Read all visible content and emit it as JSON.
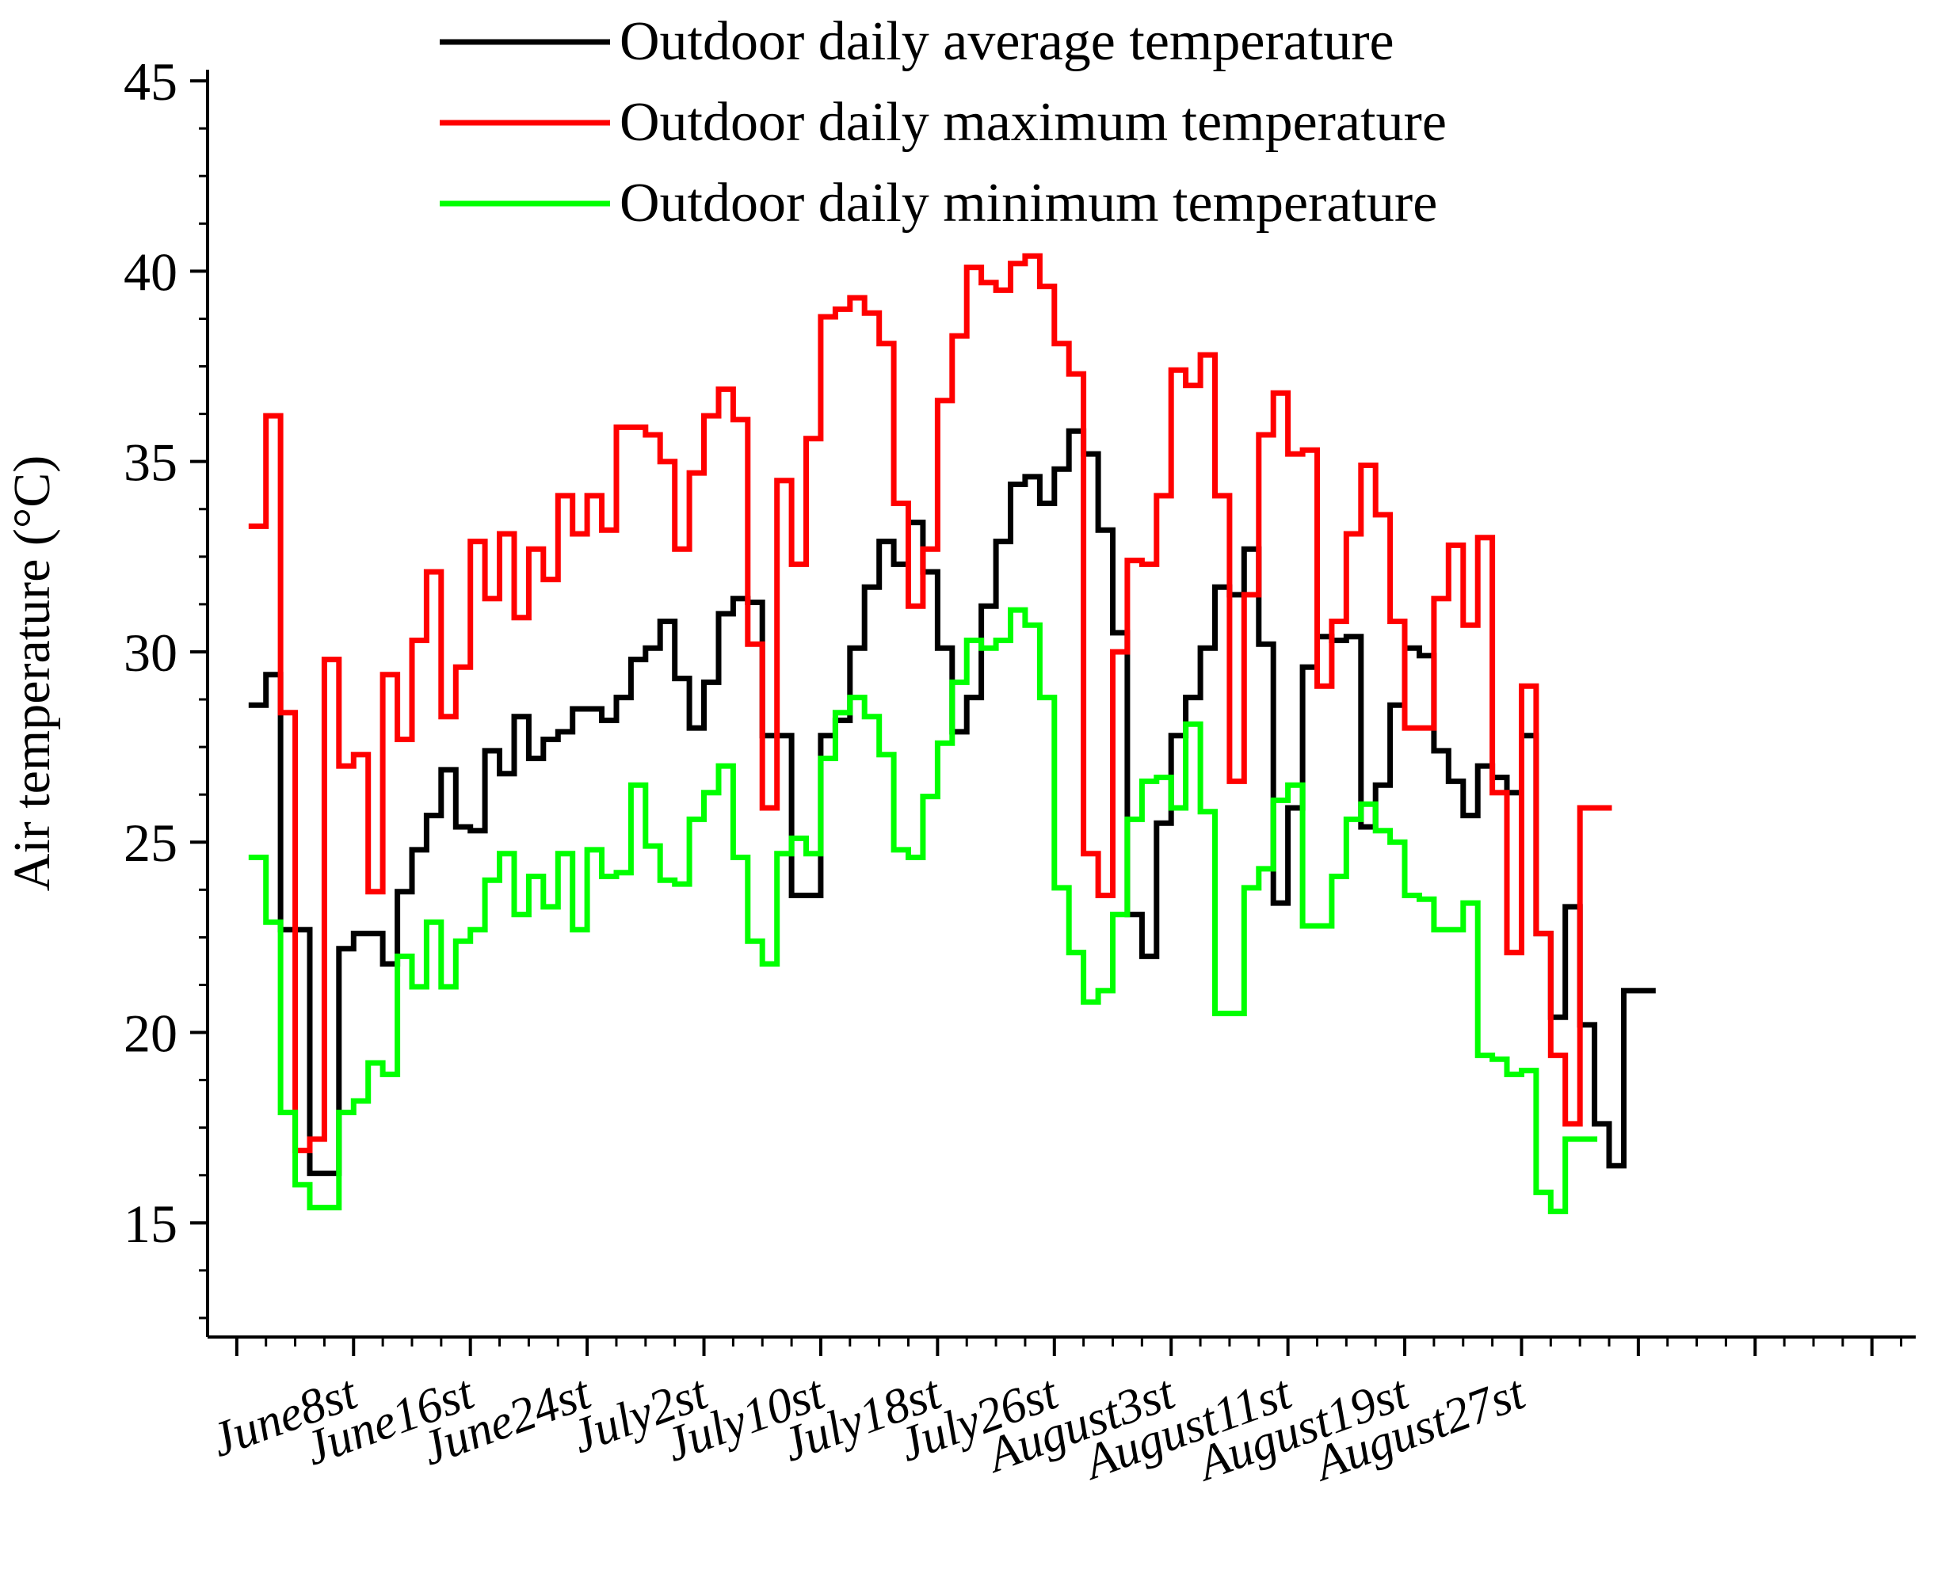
{
  "chart_data": {
    "type": "line",
    "step": true,
    "title": "",
    "xlabel": "",
    "ylabel": "Air temperature (°C)",
    "ylim": [
      12,
      46.5
    ],
    "yticks": [
      15,
      20,
      25,
      30,
      35,
      40,
      45
    ],
    "xlim": [
      -3,
      114
    ],
    "x_tick_labels": [
      "June8st",
      "June16st",
      "June24st",
      "July2st",
      "July10st",
      "July18st",
      "July26st",
      "August3st",
      "August11st",
      "August19st",
      "August27st"
    ],
    "x_tick_positions": [
      7,
      15,
      23,
      31,
      39,
      47,
      55,
      63,
      71,
      79,
      87
    ],
    "legend": {
      "position": "top-right",
      "entries": [
        {
          "label": "Outdoor daily average temperature",
          "color": "#000000",
          "series_index": 0
        },
        {
          "label": "Outdoor daily maximum temperature",
          "color": "#ff0000",
          "series_index": 1
        },
        {
          "label": "Outdoor daily minimum temperature",
          "color": "#00ff00",
          "series_index": 2
        }
      ]
    },
    "series": [
      {
        "name": "Outdoor daily average temperature",
        "color": "#000000",
        "values": [
          28.6,
          29.4,
          22.7,
          22.7,
          16.3,
          16.3,
          22.2,
          22.6,
          22.6,
          21.8,
          23.7,
          24.8,
          25.7,
          26.9,
          25.4,
          25.3,
          27.4,
          26.8,
          28.3,
          27.2,
          27.7,
          27.9,
          28.5,
          28.5,
          28.2,
          28.8,
          29.8,
          30.1,
          30.8,
          29.3,
          28.0,
          29.2,
          31.0,
          31.4,
          31.3,
          27.8,
          27.8,
          23.6,
          23.6,
          27.8,
          28.2,
          30.1,
          31.7,
          32.9,
          32.3,
          33.4,
          32.1,
          30.1,
          27.9,
          28.8,
          31.2,
          32.9,
          34.4,
          34.6,
          33.9,
          34.8,
          35.8,
          35.2,
          33.2,
          30.5,
          23.1,
          22.0,
          25.5,
          27.8,
          28.8,
          30.1,
          31.7,
          31.5,
          32.7,
          30.2,
          23.4,
          25.9,
          29.6,
          30.4,
          30.3,
          30.4,
          25.4,
          26.5,
          28.6,
          30.1,
          29.9,
          27.4,
          26.6,
          25.7,
          27.0,
          26.7,
          26.3,
          27.8,
          22.6,
          20.4,
          23.3,
          20.2,
          17.6,
          16.5,
          21.1,
          21.1
        ]
      },
      {
        "name": "Outdoor daily maximum temperature",
        "color": "#ff0000",
        "values": [
          33.3,
          36.2,
          28.4,
          16.9,
          17.2,
          29.8,
          27.0,
          27.3,
          23.7,
          29.4,
          27.7,
          30.3,
          32.1,
          28.3,
          29.6,
          32.9,
          31.4,
          33.1,
          30.9,
          32.7,
          31.9,
          34.1,
          33.1,
          34.1,
          33.2,
          35.9,
          35.9,
          35.7,
          35.0,
          32.7,
          34.7,
          36.2,
          36.9,
          36.1,
          30.2,
          25.9,
          34.5,
          32.3,
          35.6,
          38.8,
          39.0,
          39.3,
          38.9,
          38.1,
          33.9,
          31.2,
          32.7,
          36.6,
          38.3,
          40.1,
          39.7,
          39.5,
          40.2,
          40.4,
          39.6,
          38.1,
          37.3,
          24.7,
          23.6,
          30.0,
          32.4,
          32.3,
          34.1,
          37.4,
          37.0,
          37.8,
          34.1,
          26.6,
          31.5,
          35.7,
          36.8,
          35.2,
          35.3,
          29.1,
          30.8,
          33.1,
          34.9,
          33.6,
          30.8,
          28.0,
          28.0,
          31.4,
          32.8,
          30.7,
          33.0,
          26.3,
          22.1,
          29.1,
          22.6,
          19.4,
          17.6,
          25.9,
          25.9
        ]
      },
      {
        "name": "Outdoor daily minimum temperature",
        "color": "#00ff00",
        "values": [
          24.6,
          22.9,
          17.9,
          16.0,
          15.4,
          15.4,
          17.9,
          18.2,
          19.2,
          18.9,
          22.0,
          21.2,
          22.9,
          21.2,
          22.4,
          22.7,
          24.0,
          24.7,
          23.1,
          24.1,
          23.3,
          24.7,
          22.7,
          24.8,
          24.1,
          24.2,
          26.5,
          24.9,
          24.0,
          23.9,
          25.6,
          26.3,
          27.0,
          24.6,
          22.4,
          21.8,
          24.7,
          25.1,
          24.7,
          27.2,
          28.4,
          28.8,
          28.3,
          27.3,
          24.8,
          24.6,
          26.2,
          27.6,
          29.2,
          30.3,
          30.1,
          30.3,
          31.1,
          30.7,
          28.8,
          23.8,
          22.1,
          20.8,
          21.1,
          23.1,
          25.6,
          26.6,
          26.7,
          25.9,
          28.1,
          25.8,
          20.5,
          20.5,
          23.8,
          24.3,
          26.1,
          26.5,
          22.8,
          22.8,
          24.1,
          25.6,
          26.0,
          25.3,
          25.0,
          23.6,
          23.5,
          22.7,
          22.7,
          23.4,
          19.4,
          19.3,
          18.9,
          19.0,
          15.8,
          15.3,
          17.2,
          17.2
        ]
      }
    ]
  }
}
